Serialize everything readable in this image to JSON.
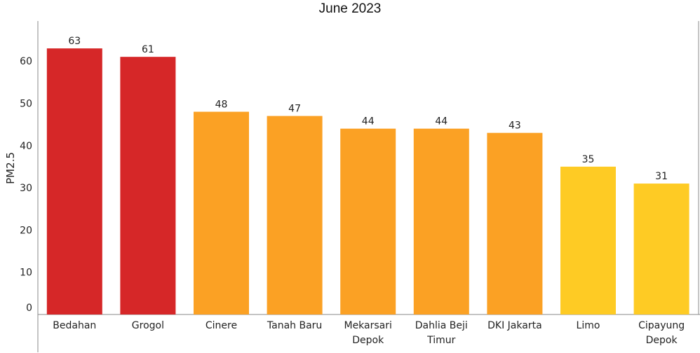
{
  "chart_data": {
    "type": "bar",
    "title": "June 2023",
    "xlabel": "",
    "ylabel": "PM2.5",
    "ylim": [
      0,
      70
    ],
    "yticks": [
      0,
      10,
      20,
      30,
      40,
      50,
      60
    ],
    "grid": false,
    "categories": [
      [
        "Bedahan"
      ],
      [
        "Grogol"
      ],
      [
        "Cinere"
      ],
      [
        "Tanah Baru"
      ],
      [
        "Mekarsari",
        "Depok"
      ],
      [
        "Dahlia Beji",
        "Timur"
      ],
      [
        "DKI Jakarta"
      ],
      [
        "Limo"
      ],
      [
        "Cipayung",
        "Depok"
      ]
    ],
    "values": [
      63,
      61,
      48,
      47,
      44,
      44,
      43,
      35,
      31
    ],
    "colors": [
      "#d62728",
      "#d62728",
      "#fba124",
      "#fba124",
      "#fba124",
      "#fba124",
      "#fba124",
      "#fecb24",
      "#fecb24"
    ]
  }
}
